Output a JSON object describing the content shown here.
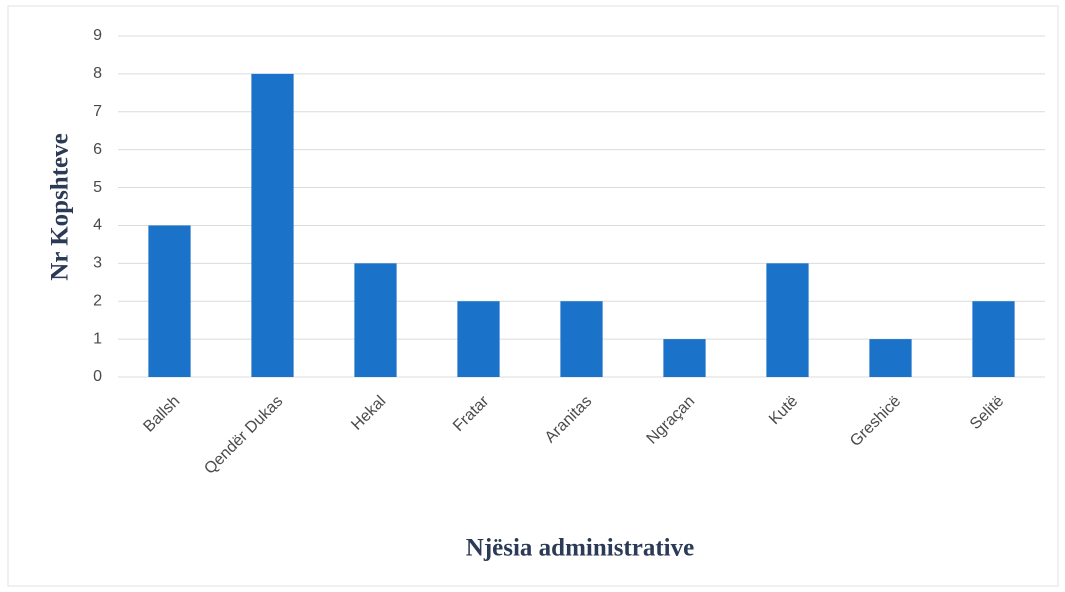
{
  "chart_data": {
    "type": "bar",
    "categories": [
      "Ballsh",
      "Qendër Dukas",
      "Hekal",
      "Fratar",
      "Aranitas",
      "Ngraçan",
      "Kutë",
      "Greshicë",
      "Selitë"
    ],
    "values": [
      4,
      8,
      3,
      2,
      2,
      1,
      3,
      1,
      2
    ],
    "color": "#1a73c8",
    "ylim": [
      0,
      9
    ],
    "yticks": [
      0,
      1,
      2,
      3,
      4,
      5,
      6,
      7,
      8,
      9
    ],
    "grid": true,
    "x_label": "Njësia administrative",
    "y_label": "Nr Kopshteve"
  }
}
